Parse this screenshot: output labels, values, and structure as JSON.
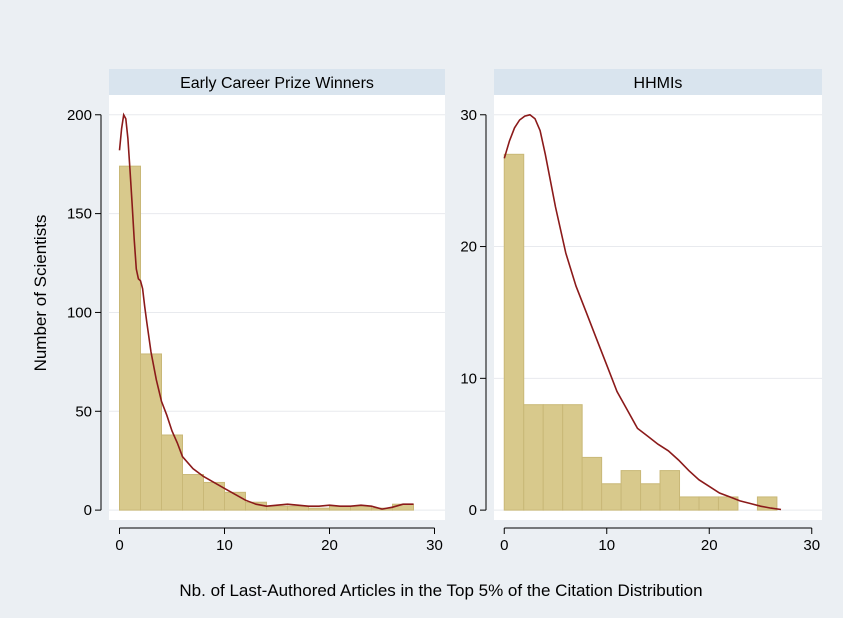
{
  "figure": {
    "ylabel": "Number of Scientists",
    "xlabel": "Nb. of Last-Authored Articles in the Top 5% of the Citation Distribution"
  },
  "colors": {
    "background": "#ebeff3",
    "header": "#d9e4ee",
    "plot": "#ffffff",
    "grid": "#e8eaee",
    "bar_fill": "#d8c98c",
    "bar_edge": "#c9b877",
    "density": "#8b1a1a"
  },
  "chart_data": [
    {
      "type": "bar",
      "title": "Early Career Prize Winners",
      "xlim": [
        -1,
        31
      ],
      "ylim": [
        -5,
        210
      ],
      "xticks": [
        0,
        10,
        20,
        30
      ],
      "yticks": [
        0,
        50,
        100,
        150,
        200
      ],
      "bin_width": 2,
      "bins": [
        0,
        2,
        4,
        6,
        8,
        10,
        12,
        14,
        16,
        18,
        20,
        22,
        24,
        26
      ],
      "values": [
        174,
        79,
        38,
        18,
        14,
        9,
        4,
        2,
        2,
        1,
        2,
        2,
        1,
        3
      ],
      "density": {
        "x": [
          0,
          0.2,
          0.4,
          0.6,
          0.8,
          1,
          1.2,
          1.4,
          1.6,
          1.8,
          2,
          2.2,
          2.4,
          2.6,
          3,
          3.5,
          4,
          4.5,
          5,
          5.5,
          6,
          7,
          8,
          9,
          10,
          11,
          12,
          13,
          14,
          15,
          16,
          17,
          18,
          19,
          20,
          21,
          22,
          23,
          24,
          25,
          26,
          27,
          28
        ],
        "y": [
          182,
          193,
          200,
          198,
          188,
          172,
          155,
          137,
          122,
          117,
          116,
          112,
          103,
          95,
          80,
          66,
          55,
          48,
          40,
          34,
          27,
          21,
          17,
          14,
          11,
          8,
          5,
          3,
          2,
          2.5,
          3,
          2.5,
          2,
          2,
          2.5,
          2,
          2,
          2.5,
          2,
          0.5,
          1.5,
          3,
          3
        ]
      }
    },
    {
      "type": "bar",
      "title": "HHMIs",
      "xlim": [
        -1,
        31
      ],
      "ylim": [
        -0.75,
        31.5
      ],
      "xticks": [
        0,
        10,
        20,
        30
      ],
      "yticks": [
        0,
        10,
        20,
        30
      ],
      "bin_width": 1.9,
      "bins": [
        0,
        1.9,
        3.8,
        5.7,
        7.6,
        9.5,
        11.4,
        13.3,
        15.2,
        17.1,
        19,
        20.9,
        22.8,
        24.7
      ],
      "values": [
        27,
        8,
        8,
        8,
        4,
        2,
        3,
        2,
        3,
        1,
        1,
        1,
        0,
        1
      ],
      "density": {
        "x": [
          0,
          0.5,
          1,
          1.5,
          2,
          2.5,
          3,
          3.5,
          4,
          5,
          6,
          7,
          8,
          9,
          10,
          11,
          12,
          13,
          14,
          15,
          16,
          17,
          18,
          19,
          20,
          21,
          22,
          23,
          24,
          25,
          26,
          27
        ],
        "y": [
          26.7,
          28,
          29,
          29.6,
          29.9,
          30,
          29.7,
          28.8,
          27,
          23,
          19.5,
          17,
          15,
          13,
          11,
          9,
          7.6,
          6.2,
          5.6,
          5,
          4.5,
          3.8,
          3,
          2.3,
          1.8,
          1.3,
          1,
          0.7,
          0.5,
          0.3,
          0.15,
          0.05
        ]
      }
    }
  ]
}
